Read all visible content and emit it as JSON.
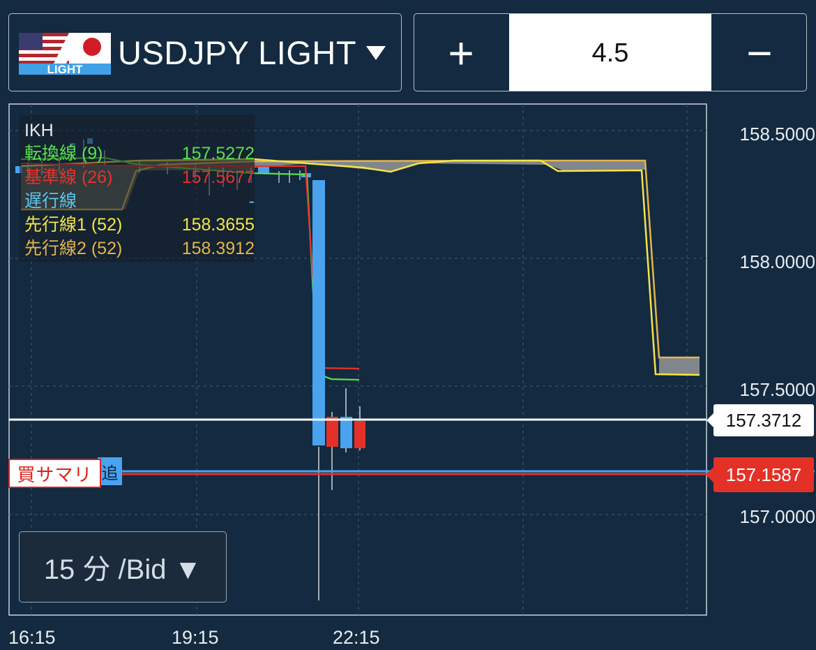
{
  "header": {
    "symbol_name": "USDJPY LIGHT",
    "flag_badge": "LIGHT",
    "lot_plus": "+",
    "lot_value": "4.5",
    "lot_minus": "−"
  },
  "ikh_panel": {
    "title": "IKH",
    "rows": [
      {
        "label": "転換線 (9)",
        "value": "157.5272",
        "color": "#58e04a"
      },
      {
        "label": "基準線 (26)",
        "value": "157.5677",
        "color": "#e8322a"
      },
      {
        "label": "遅行線",
        "value": "-",
        "color": "#59c7f0"
      },
      {
        "label": "先行線1 (52)",
        "value": "158.3655",
        "color": "#f4e545"
      },
      {
        "label": "先行線2 (52)",
        "value": "158.3912",
        "color": "#e5b54a"
      }
    ]
  },
  "price_axis": {
    "labels": [
      "158.5000",
      "158.0000",
      "157.5000",
      "157.0000"
    ],
    "current_price": "157.3712",
    "position_price": "157.1587"
  },
  "position_tag": {
    "label": "買サマリ",
    "side_glyph": "追"
  },
  "timeframe_button": {
    "label": "15 分 /Bid ▼"
  },
  "time_axis": {
    "labels": [
      "16:15",
      "19:15",
      "22:15"
    ]
  },
  "colors": {
    "background": "#132a40",
    "up_candle": "#4aa3ee",
    "down_candle": "#e33127",
    "tenkan": "#58e04a",
    "kijun": "#e8322a",
    "senkou1": "#f4e545",
    "senkou2": "#e5b54a",
    "cloud": "#8a8f94"
  }
}
